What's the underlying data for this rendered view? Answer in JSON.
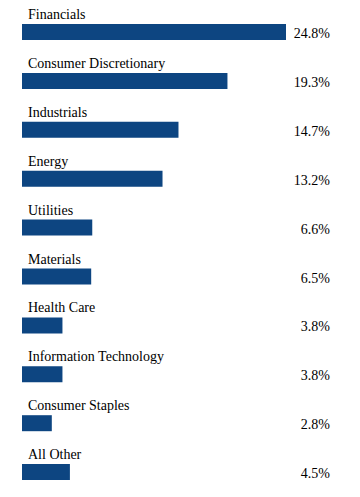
{
  "chart_data": {
    "type": "bar",
    "orientation": "horizontal",
    "categories": [
      "Financials",
      "Consumer Discretionary",
      "Industrials",
      "Energy",
      "Utilities",
      "Materials",
      "Health Care",
      "Information Technology",
      "Consumer Staples",
      "All Other"
    ],
    "values": [
      24.8,
      19.3,
      14.7,
      13.2,
      6.6,
      6.5,
      3.8,
      3.8,
      2.8,
      4.5
    ],
    "value_labels": [
      "24.8%",
      "19.3%",
      "14.7%",
      "13.2%",
      "6.6%",
      "6.5%",
      "3.8%",
      "3.8%",
      "2.8%",
      "4.5%"
    ],
    "data_labels": true,
    "tick_labels": false,
    "color": "#0d4581"
  }
}
